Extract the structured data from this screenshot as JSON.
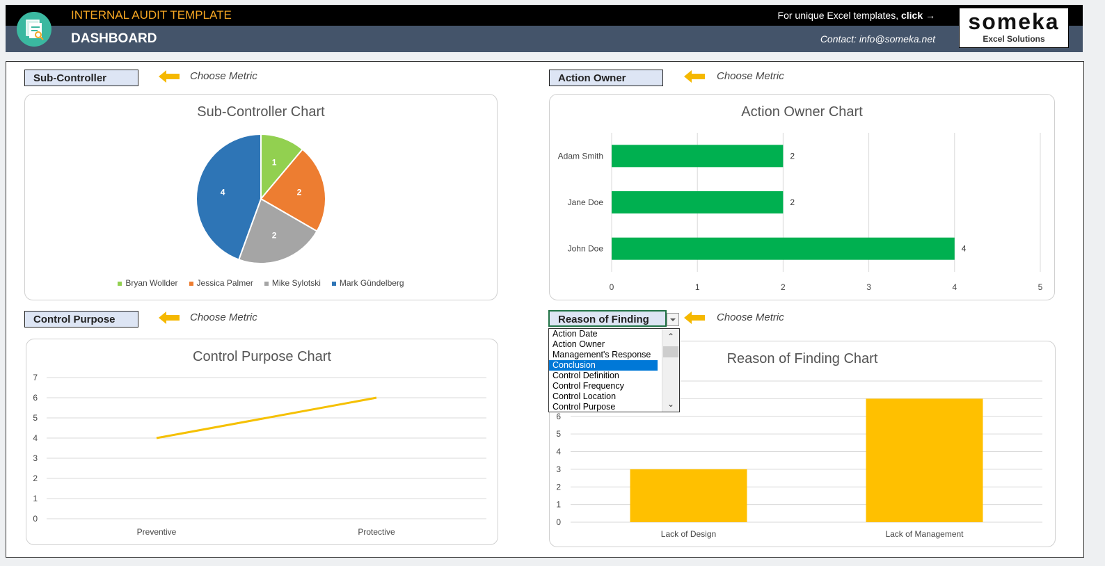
{
  "header": {
    "app_title": "INTERNAL AUDIT TEMPLATE",
    "page_title": "DASHBOARD",
    "promo_text": "For unique Excel templates, ",
    "promo_link": "click →",
    "contact": "Contact: info@someka.net",
    "brand_name": "someka",
    "brand_sub": "Excel Solutions"
  },
  "metrics": {
    "top_left": "Sub-Controller",
    "top_right": "Action Owner",
    "bottom_left": "Control Purpose",
    "bottom_right": "Reason of Finding",
    "choose_label": "Choose Metric"
  },
  "dropdown": {
    "options": [
      "Action Date",
      "Action Owner",
      "Management's Response",
      "Conclusion",
      "Control Definition",
      "Control Frequency",
      "Control Location",
      "Control Purpose"
    ],
    "selected": "Conclusion"
  },
  "colors": {
    "accent": "#f5a623",
    "header": "#44546a",
    "bar_green": "#00b050",
    "bar_yellow": "#ffc000",
    "line_yellow": "#f5c000"
  },
  "chart_data": [
    {
      "type": "pie",
      "title": "Sub-Controller Chart",
      "categories": [
        "Bryan Wollder",
        "Jessica Palmer",
        "Mike Sylotski",
        "Mark Gündelberg"
      ],
      "values": [
        1,
        2,
        2,
        4
      ],
      "colors": [
        "#92d050",
        "#ed7d31",
        "#a5a5a5",
        "#2e75b6"
      ],
      "legend": "bottom"
    },
    {
      "type": "bar",
      "orientation": "horizontal",
      "title": "Action Owner Chart",
      "categories": [
        "Adam Smith",
        "Jane Doe",
        "John Doe"
      ],
      "values": [
        2,
        2,
        4
      ],
      "xlim": [
        0,
        5
      ],
      "ticks": [
        "0",
        "1",
        "2",
        "3",
        "4",
        "5"
      ],
      "grid": true
    },
    {
      "type": "line",
      "title": "Control Purpose Chart",
      "categories": [
        "Preventive",
        "Protective"
      ],
      "values": [
        4,
        6
      ],
      "ylim": [
        0,
        7
      ],
      "ticks": [
        "0",
        "1",
        "2",
        "3",
        "4",
        "5",
        "6",
        "7"
      ],
      "grid": true
    },
    {
      "type": "bar",
      "title": "Reason of Finding Chart",
      "categories": [
        "Lack of Design",
        "Lack of Management"
      ],
      "values": [
        3,
        7
      ],
      "ylim": [
        0,
        8
      ],
      "ticks": [
        "0",
        "1",
        "2",
        "3",
        "4",
        "5",
        "6"
      ],
      "grid": true
    }
  ]
}
